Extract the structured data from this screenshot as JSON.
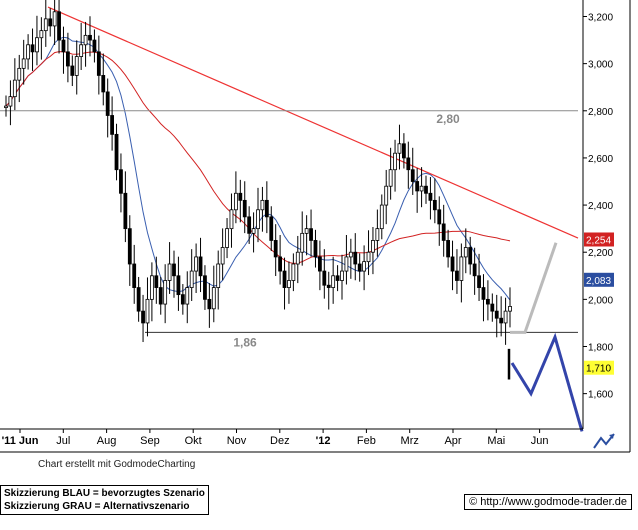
{
  "chart_data": {
    "type": "candlestick",
    "x_ticks": [
      "'11 Jun",
      "Jul",
      "Aug",
      "Sep",
      "Okt",
      "Nov",
      "Dez",
      "'12",
      "Feb",
      "Mrz",
      "Apr",
      "Mai",
      "Jun"
    ],
    "y_ticks": [
      "1,600",
      "1,800",
      "2,000",
      "2,200",
      "2,400",
      "2,600",
      "2,800",
      "3,000",
      "3,200"
    ],
    "ylim": [
      1.45,
      3.27
    ],
    "grid": false,
    "close_series": [
      2.82,
      2.86,
      2.93,
      2.98,
      3.02,
      3.08,
      3.05,
      3.11,
      3.14,
      3.19,
      3.16,
      3.22,
      3.1,
      3.05,
      2.99,
      2.95,
      3.03,
      3.08,
      3.12,
      3.1,
      3.05,
      2.95,
      2.88,
      2.78,
      2.7,
      2.55,
      2.45,
      2.3,
      2.15,
      2.05,
      1.95,
      1.9,
      2.0,
      2.1,
      2.05,
      1.98,
      2.08,
      2.15,
      2.1,
      2.02,
      1.98,
      2.05,
      2.12,
      2.18,
      2.1,
      2.0,
      1.96,
      2.05,
      2.15,
      2.22,
      2.3,
      2.38,
      2.45,
      2.42,
      2.35,
      2.28,
      2.3,
      2.38,
      2.42,
      2.35,
      2.25,
      2.18,
      2.12,
      2.05,
      2.08,
      2.15,
      2.2,
      2.28,
      2.3,
      2.25,
      2.18,
      2.12,
      2.06,
      2.05,
      2.1,
      2.08,
      2.12,
      2.18,
      2.2,
      2.15,
      2.12,
      2.16,
      2.2,
      2.25,
      2.3,
      2.4,
      2.48,
      2.55,
      2.62,
      2.66,
      2.6,
      2.55,
      2.5,
      2.46,
      2.48,
      2.45,
      2.42,
      2.38,
      2.32,
      2.25,
      2.18,
      2.12,
      2.08,
      2.18,
      2.22,
      2.15,
      2.1,
      2.05,
      2.0,
      1.98,
      1.95,
      1.92,
      1.9,
      1.95,
      1.97
    ],
    "sma_blue_label": "2,083",
    "sma_red_label": "2,254",
    "price_label": "1,710",
    "annotations": [
      {
        "text": "2,80",
        "value": 2.8
      },
      {
        "text": "1,86",
        "value": 1.86
      }
    ],
    "colors": {
      "candles": "#000000",
      "sma_blue": "#3a5fb0",
      "sma_red": "#d22222",
      "trendline": "#ee3333",
      "horizontal": "#8a8a8a",
      "scenario_blue": "#3344aa",
      "scenario_grey": "#bbbbbb",
      "label_red_bg": "#d22222",
      "label_blue_bg": "#2b4ea0",
      "label_yellow_bg": "#ffff33"
    }
  },
  "footer": {
    "credit": "Chart erstellt mit GodmodeCharting",
    "legend_line1": "Skizzierung BLAU = bevorzugtes Szenario",
    "legend_line2": "Skizzierung GRAU = Alternativszenario",
    "copyright": "© http://www.godmode-trader.de"
  }
}
